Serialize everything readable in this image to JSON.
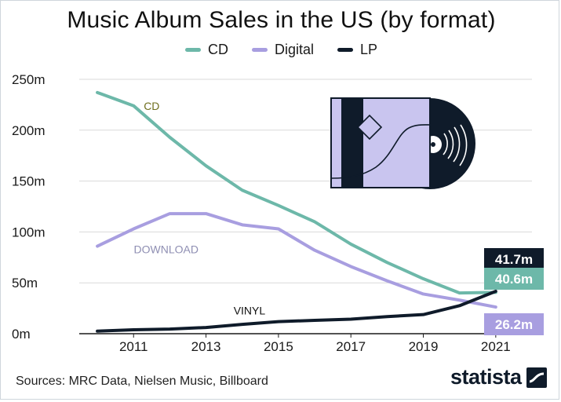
{
  "title": "Music Album Sales in the US (by format)",
  "source": "Sources: MRC Data, Nielsen Music, Billboard",
  "brand": "statista",
  "chart_data": {
    "type": "line",
    "title": "Music Album Sales in the US (by format)",
    "xlabel": "",
    "ylabel": "",
    "x": [
      2010,
      2011,
      2012,
      2013,
      2014,
      2015,
      2016,
      2017,
      2018,
      2019,
      2020,
      2021
    ],
    "x_tick_values": [
      2011,
      2013,
      2015,
      2017,
      2019,
      2021
    ],
    "x_tick_labels": [
      "2011",
      "2013",
      "2015",
      "2017",
      "2019",
      "2021"
    ],
    "xlim": [
      2009.5,
      2022
    ],
    "ylim": [
      0,
      250
    ],
    "y_ticks": [
      0,
      50,
      100,
      150,
      200,
      250
    ],
    "y_tick_labels": [
      "0m",
      "50m",
      "100m",
      "150m",
      "200m",
      "250m"
    ],
    "grid": true,
    "legend_position": "top-center",
    "series": [
      {
        "name": "CD",
        "color": "#6db8a9",
        "annotation": "CD",
        "annotation_color": "#6f6f1e",
        "values": [
          237,
          224,
          193,
          165,
          141,
          126,
          110,
          88,
          70,
          54,
          40,
          40.6
        ],
        "end_label": "40.6m"
      },
      {
        "name": "Digital",
        "color": "#a89ee0",
        "annotation": "DOWNLOAD",
        "annotation_color": "#8f8fb3",
        "values": [
          86,
          103,
          118,
          118,
          107,
          103,
          82,
          66,
          52,
          39,
          33,
          26.2
        ],
        "end_label": "26.2m"
      },
      {
        "name": "LP",
        "color": "#0f1b2a",
        "annotation": "VINYL",
        "annotation_color": "#111111",
        "values": [
          2.5,
          3.9,
          4.5,
          6.1,
          9.2,
          11.9,
          13.1,
          14.3,
          16.8,
          18.8,
          27.5,
          41.7
        ],
        "end_label": "41.7m"
      }
    ]
  }
}
